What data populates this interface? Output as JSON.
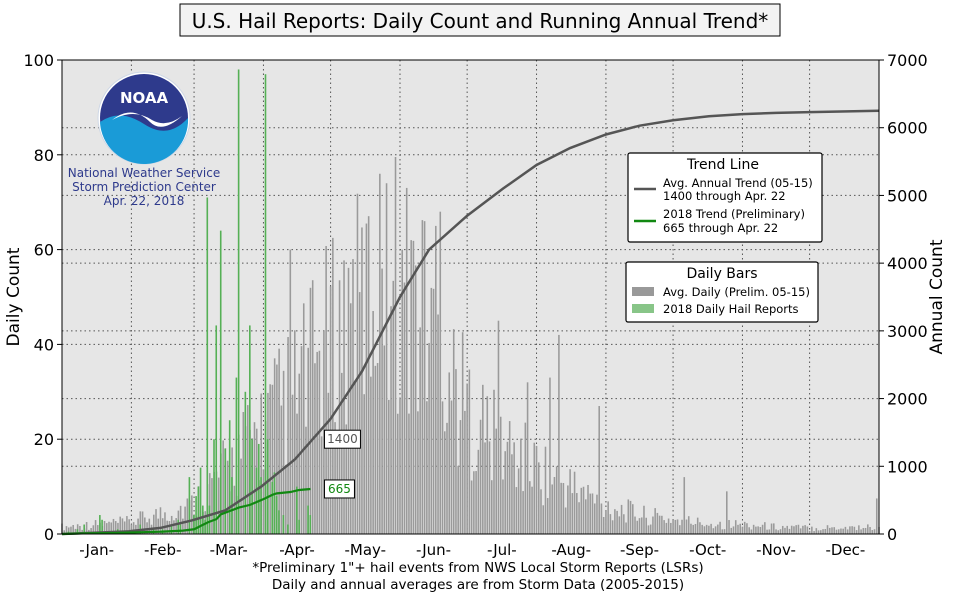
{
  "chart_data": {
    "type": "bar",
    "title": "U.S. Hail Reports: Daily Count and Running Annual Trend*",
    "ylabel": "Daily Count",
    "y2label": "Annual Count",
    "ylim": [
      0,
      100
    ],
    "y2lim": [
      0,
      7000
    ],
    "yticks": [
      0,
      20,
      40,
      60,
      80,
      100
    ],
    "y2ticks": [
      0,
      1000,
      2000,
      3000,
      4000,
      5000,
      6000,
      7000
    ],
    "xlim": [
      1,
      366
    ],
    "month_starts": [
      1,
      32,
      60,
      91,
      121,
      152,
      182,
      213,
      244,
      274,
      305,
      335
    ],
    "month_labels": [
      "-Jan-",
      "-Feb-",
      "-Mar-",
      "-Apr-",
      "-May-",
      "-Jun-",
      "-Jul-",
      "-Aug-",
      "-Sep-",
      "-Oct-",
      "-Nov-",
      "-Dec-"
    ],
    "grid": true,
    "avg_daily_keypoints": [
      [
        1,
        1.5
      ],
      [
        31,
        2.5
      ],
      [
        59,
        6
      ],
      [
        75,
        14
      ],
      [
        90,
        22
      ],
      [
        105,
        30
      ],
      [
        120,
        40
      ],
      [
        135,
        48
      ],
      [
        150,
        55
      ],
      [
        160,
        47
      ],
      [
        170,
        38
      ],
      [
        182,
        26
      ],
      [
        196,
        19
      ],
      [
        213,
        14
      ],
      [
        228,
        10
      ],
      [
        244,
        6
      ],
      [
        260,
        4
      ],
      [
        274,
        3
      ],
      [
        290,
        2.2
      ],
      [
        305,
        2
      ],
      [
        320,
        1.5
      ],
      [
        335,
        1.3
      ],
      [
        366,
        1.5
      ]
    ],
    "avg_daily_spikes": [
      [
        103,
        60
      ],
      [
        143,
        76
      ],
      [
        146,
        74
      ],
      [
        170,
        68
      ],
      [
        168,
        65
      ],
      [
        131,
        58
      ],
      [
        144,
        56
      ],
      [
        153,
        60
      ],
      [
        157,
        62
      ],
      [
        163,
        66
      ],
      [
        209,
        32
      ],
      [
        219,
        33
      ],
      [
        223,
        42
      ],
      [
        196,
        45
      ],
      [
        241,
        27
      ],
      [
        279,
        12
      ],
      [
        298,
        9
      ],
      [
        365,
        7.5
      ]
    ],
    "trend_2018_daily": [
      [
        66,
        71
      ],
      [
        80,
        98
      ],
      [
        85,
        44
      ],
      [
        92,
        97
      ],
      [
        72,
        64
      ],
      [
        70,
        44
      ],
      [
        76,
        24
      ],
      [
        83,
        30
      ],
      [
        69,
        20
      ],
      [
        74,
        18
      ],
      [
        77,
        12
      ],
      [
        79,
        33
      ],
      [
        86,
        20
      ],
      [
        88,
        14
      ],
      [
        89,
        19
      ],
      [
        90,
        12
      ],
      [
        93,
        20
      ],
      [
        95,
        11
      ],
      [
        96,
        13
      ],
      [
        97,
        8
      ],
      [
        98,
        5
      ],
      [
        100,
        4
      ],
      [
        102,
        2
      ],
      [
        106,
        10
      ],
      [
        107,
        3
      ],
      [
        111,
        6
      ],
      [
        112,
        4
      ],
      [
        58,
        12
      ],
      [
        61,
        8
      ],
      [
        62,
        10
      ],
      [
        64,
        6
      ],
      [
        63,
        14
      ],
      [
        65,
        3
      ],
      [
        67,
        6
      ],
      [
        60,
        4
      ],
      [
        54,
        2
      ],
      [
        46,
        1
      ],
      [
        36,
        2
      ],
      [
        18,
        4
      ],
      [
        11,
        2
      ],
      [
        8,
        1
      ],
      [
        4,
        0.5
      ],
      [
        19,
        3
      ],
      [
        26,
        1
      ],
      [
        42,
        1
      ],
      [
        50,
        2
      ],
      [
        53,
        3
      ]
    ],
    "avg_annual_trend": [
      [
        1,
        0
      ],
      [
        31,
        40
      ],
      [
        45,
        90
      ],
      [
        59,
        200
      ],
      [
        74,
        350
      ],
      [
        90,
        700
      ],
      [
        105,
        1100
      ],
      [
        121,
        1700
      ],
      [
        135,
        2400
      ],
      [
        152,
        3500
      ],
      [
        165,
        4200
      ],
      [
        182,
        4700
      ],
      [
        198,
        5100
      ],
      [
        213,
        5450
      ],
      [
        228,
        5700
      ],
      [
        244,
        5900
      ],
      [
        259,
        6030
      ],
      [
        274,
        6110
      ],
      [
        290,
        6170
      ],
      [
        305,
        6200
      ],
      [
        320,
        6220
      ],
      [
        335,
        6230
      ],
      [
        366,
        6250
      ]
    ],
    "trend_2018_annual": [
      [
        1,
        0
      ],
      [
        12,
        10
      ],
      [
        25,
        15
      ],
      [
        35,
        25
      ],
      [
        46,
        35
      ],
      [
        55,
        50
      ],
      [
        60,
        70
      ],
      [
        66,
        170
      ],
      [
        70,
        220
      ],
      [
        72,
        290
      ],
      [
        80,
        390
      ],
      [
        85,
        430
      ],
      [
        92,
        530
      ],
      [
        95,
        580
      ],
      [
        97,
        600
      ],
      [
        103,
        620
      ],
      [
        107,
        650
      ],
      [
        112,
        665
      ]
    ],
    "annotations": [
      {
        "text": "1400",
        "x": 112,
        "y2": 1400,
        "series": "avg"
      },
      {
        "text": "665",
        "x": 112,
        "y2": 665,
        "series": "2018"
      }
    ],
    "legend_trend": {
      "title": "Trend Line",
      "items": [
        {
          "label1": "Avg. Annual Trend (05-15)",
          "label2": "1400 through Apr. 22",
          "color": "#555555"
        },
        {
          "label1": "2018 Trend (Preliminary)",
          "label2": "665 through Apr. 22",
          "color": "#118811"
        }
      ]
    },
    "legend_bars": {
      "title": "Daily Bars",
      "items": [
        {
          "label": "Avg. Daily (Prelim. 05-15)",
          "color": "#999999"
        },
        {
          "label": "2018 Daily Hail Reports",
          "color": "#88c588"
        }
      ]
    },
    "colors": {
      "avg_bar": "#9a9a9a",
      "bar_2018": "#55b055",
      "avg_line": "#555555",
      "line_2018": "#118811",
      "plot_bg": "#e6e6e6"
    },
    "footnote1": "*Preliminary 1\"+ hail events from NWS Local Storm Reports (LSRs)",
    "footnote2": "Daily and annual averages are from Storm Data (2005-2015)"
  },
  "logo": {
    "emblem_text": "NOAA",
    "line1": "National Weather Service",
    "line2": "Storm Prediction Center",
    "date": "Apr. 22, 2018"
  }
}
